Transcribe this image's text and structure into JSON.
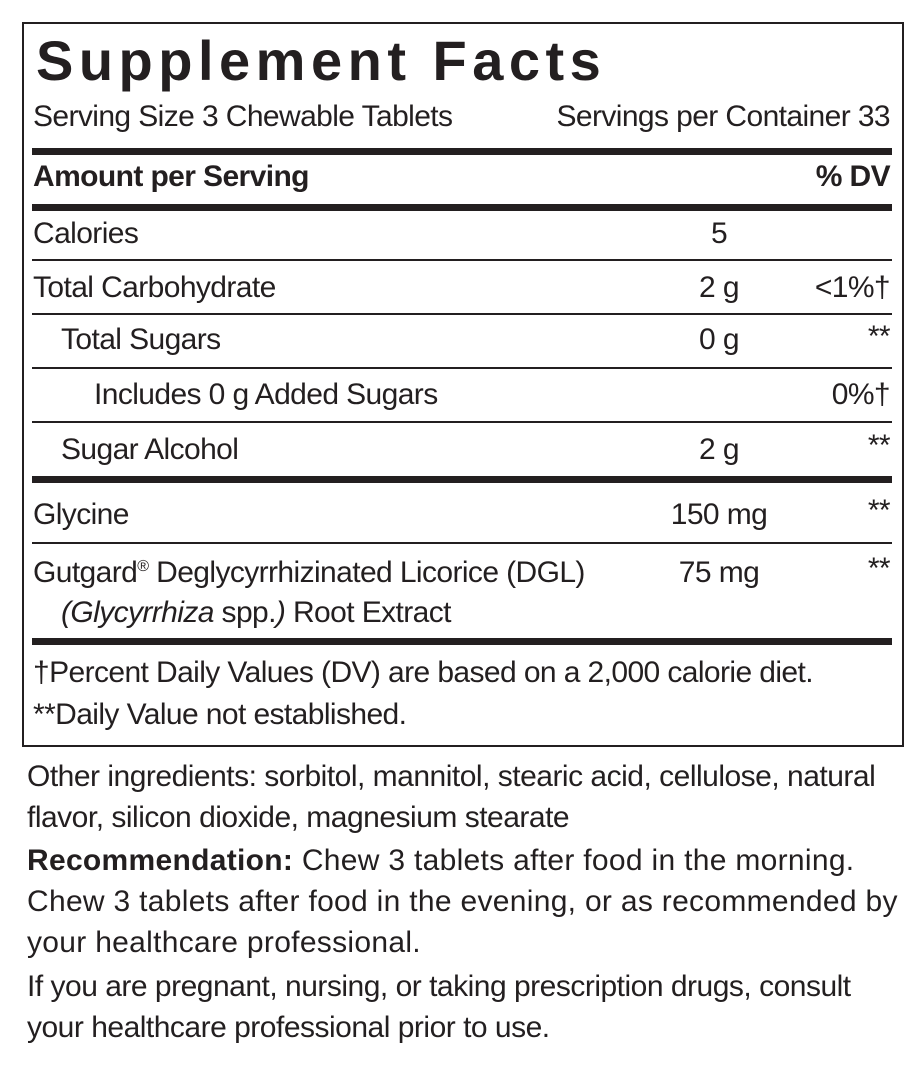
{
  "title": "Supplement Facts",
  "serving_size": "Serving Size 3 Chewable Tablets",
  "servings_per_container": "Servings per Container 33",
  "header": {
    "amount": "Amount per Serving",
    "dv": "% DV"
  },
  "rows": [
    {
      "name": "Calories",
      "amount": "5"
    },
    {
      "name": "Total Carbohydrate",
      "amount": "2 g",
      "dv": "<1%†"
    },
    {
      "name": "Total Sugars",
      "amount": "0 g",
      "dv": "**"
    },
    {
      "name": "Includes 0 g Added Sugars",
      "dv": "0%†"
    },
    {
      "name": "Sugar Alcohol",
      "amount": "2 g",
      "dv": "**"
    },
    {
      "name": "Glycine",
      "amount": "150 mg",
      "dv": "**"
    },
    {
      "name": "Gutgard",
      "mark": "®",
      "name_rest": " Deglycyrrhizinated Licorice (DGL)",
      "source_parts": [
        "(Glycyrrhiza",
        " spp.",
        ")",
        " Root Extract"
      ],
      "amount": "75 mg",
      "dv": "**"
    }
  ],
  "footnotes": [
    "†Percent Daily Values (DV) are based on a 2,000 calorie diet.",
    "**Daily Value not established."
  ],
  "other_ingredients": "Other ingredients: sorbitol, mannitol, stearic acid, cellulose, natural flavor, silicon dioxide, magnesium stearate",
  "recommendation": {
    "label": "Recommendation:",
    "text": " Chew 3 tablets after food in the morning. Chew 3 tablets after food in the evening, or as recommended by your healthcare professional."
  },
  "warning": "If you are pregnant, nursing, or taking prescription drugs, consult your healthcare professional prior to use."
}
